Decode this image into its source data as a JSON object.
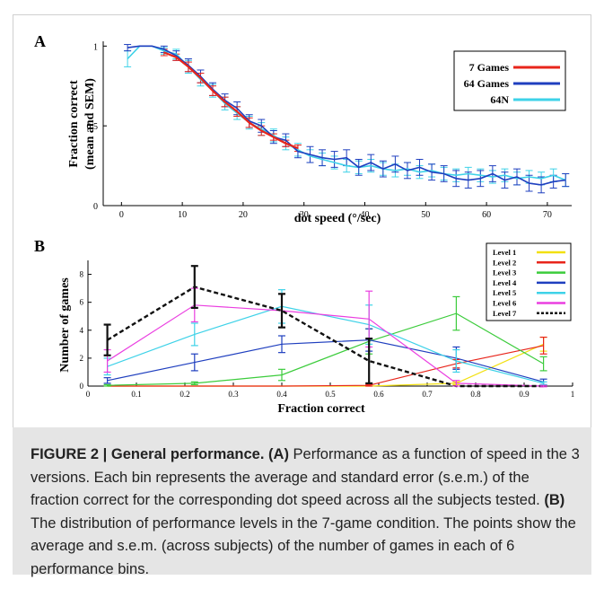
{
  "chart_data": [
    {
      "type": "line",
      "panel_label": "A",
      "xlabel": "dot speed (°/sec)",
      "ylabel_line1": "Fraction correct",
      "ylabel_line2": "(mean and SEM)",
      "xlim": [
        -3,
        74
      ],
      "ylim": [
        0,
        1.03
      ],
      "x_ticks": [
        "0",
        "10",
        "20",
        "30",
        "40",
        "50",
        "60",
        "70"
      ],
      "y_ticks": [
        "0",
        "0.5",
        "1"
      ],
      "legend_position": "top-right",
      "series": [
        {
          "name": "7 Games",
          "color": "#e8251b",
          "x": [
            7,
            9,
            11,
            13,
            15,
            17,
            19,
            21,
            23,
            25,
            27,
            29
          ],
          "y": [
            0.96,
            0.93,
            0.87,
            0.8,
            0.72,
            0.65,
            0.59,
            0.52,
            0.47,
            0.43,
            0.39,
            0.36
          ],
          "err": [
            0.02,
            0.02,
            0.03,
            0.03,
            0.03,
            0.03,
            0.03,
            0.03,
            0.03,
            0.02,
            0.02,
            0.02
          ]
        },
        {
          "name": "64 Games",
          "color": "#1f3fbf",
          "x": [
            1,
            3,
            5,
            7,
            9,
            11,
            13,
            15,
            17,
            19,
            21,
            23,
            25,
            27,
            29,
            31,
            33,
            35,
            37,
            39,
            41,
            43,
            45,
            47,
            49,
            51,
            53,
            55,
            57,
            59,
            61,
            63,
            65,
            67,
            69,
            71,
            73
          ],
          "y": [
            0.99,
            1.0,
            1.0,
            0.98,
            0.94,
            0.88,
            0.81,
            0.73,
            0.66,
            0.61,
            0.53,
            0.5,
            0.43,
            0.41,
            0.34,
            0.32,
            0.3,
            0.29,
            0.3,
            0.24,
            0.27,
            0.23,
            0.26,
            0.22,
            0.24,
            0.21,
            0.2,
            0.17,
            0.16,
            0.17,
            0.2,
            0.16,
            0.18,
            0.14,
            0.13,
            0.15,
            0.16
          ],
          "err": [
            0.02,
            0.0,
            0.0,
            0.02,
            0.03,
            0.04,
            0.04,
            0.04,
            0.04,
            0.04,
            0.04,
            0.04,
            0.04,
            0.04,
            0.04,
            0.05,
            0.05,
            0.05,
            0.05,
            0.05,
            0.05,
            0.05,
            0.05,
            0.05,
            0.05,
            0.05,
            0.05,
            0.05,
            0.05,
            0.05,
            0.05,
            0.05,
            0.05,
            0.05,
            0.05,
            0.04,
            0.04
          ]
        },
        {
          "name": "64N",
          "color": "#3ed2e8",
          "x": [
            1,
            3,
            5,
            7,
            9,
            11,
            13,
            15,
            17,
            19,
            21,
            23,
            25,
            27,
            29,
            31,
            33,
            35,
            37,
            39,
            41,
            43,
            45,
            47,
            49,
            51,
            53,
            55,
            57,
            59,
            61,
            63,
            65,
            67,
            69,
            71,
            73
          ],
          "y": [
            0.92,
            1.0,
            1.0,
            0.97,
            0.95,
            0.87,
            0.79,
            0.72,
            0.64,
            0.58,
            0.52,
            0.48,
            0.44,
            0.39,
            0.35,
            0.31,
            0.29,
            0.27,
            0.25,
            0.24,
            0.25,
            0.23,
            0.22,
            0.23,
            0.21,
            0.22,
            0.2,
            0.19,
            0.2,
            0.19,
            0.18,
            0.19,
            0.17,
            0.18,
            0.17,
            0.19,
            0.16
          ],
          "err": [
            0.05,
            0.0,
            0.0,
            0.02,
            0.03,
            0.04,
            0.04,
            0.04,
            0.04,
            0.04,
            0.04,
            0.04,
            0.04,
            0.04,
            0.04,
            0.04,
            0.04,
            0.04,
            0.04,
            0.04,
            0.04,
            0.04,
            0.04,
            0.04,
            0.04,
            0.04,
            0.04,
            0.04,
            0.04,
            0.04,
            0.04,
            0.04,
            0.04,
            0.04,
            0.04,
            0.04,
            0.04
          ]
        }
      ]
    },
    {
      "type": "line",
      "panel_label": "B",
      "xlabel": "Fraction correct",
      "ylabel": "Number of games",
      "xlim": [
        0,
        1
      ],
      "ylim": [
        0,
        9
      ],
      "x_ticks": [
        "0",
        "0.1",
        "0.2",
        "0.3",
        "0.4",
        "0.5",
        "0.6",
        "0.7",
        "0.8",
        "0.9",
        "1"
      ],
      "y_ticks": [
        "0",
        "2",
        "4",
        "6",
        "8"
      ],
      "legend_position": "top-right",
      "x": [
        0.04,
        0.22,
        0.4,
        0.58,
        0.76,
        0.94
      ],
      "series": [
        {
          "name": "Level 1",
          "color": "#f2e010",
          "dash": false,
          "y": [
            0,
            0,
            0,
            0,
            0.2,
            3.0
          ],
          "err": [
            0,
            0,
            0,
            0,
            0.1,
            0.5
          ]
        },
        {
          "name": "Level 2",
          "color": "#e8251b",
          "dash": false,
          "y": [
            0,
            0,
            0,
            0.05,
            1.6,
            2.9
          ],
          "err": [
            0,
            0,
            0,
            0.05,
            0.3,
            0.6
          ]
        },
        {
          "name": "Level 3",
          "color": "#3ccc3c",
          "dash": false,
          "y": [
            0.05,
            0.2,
            0.8,
            3.2,
            5.2,
            1.6
          ],
          "err": [
            0.05,
            0.1,
            0.4,
            0.9,
            1.2,
            0.5
          ]
        },
        {
          "name": "Level 4",
          "color": "#1f3fbf",
          "dash": false,
          "y": [
            0.4,
            1.7,
            3.0,
            3.3,
            2.0,
            0.3
          ],
          "err": [
            0.2,
            0.6,
            0.6,
            0.8,
            0.8,
            0.2
          ]
        },
        {
          "name": "Level 5",
          "color": "#3ed2e8",
          "dash": false,
          "y": [
            1.4,
            3.7,
            5.7,
            4.4,
            1.8,
            0.2
          ],
          "err": [
            0.6,
            0.8,
            1.2,
            1.4,
            0.8,
            0.1
          ]
        },
        {
          "name": "Level 6",
          "color": "#ea3fe0",
          "dash": false,
          "y": [
            1.8,
            5.8,
            5.4,
            4.8,
            0.2,
            0.0
          ],
          "err": [
            0.8,
            1.2,
            1.2,
            2.0,
            0.2,
            0.05
          ]
        },
        {
          "name": "Level 7",
          "color": "#111111",
          "dash": true,
          "y": [
            3.3,
            7.1,
            5.4,
            1.8,
            0,
            0
          ],
          "err": [
            1.1,
            1.5,
            1.2,
            1.6,
            0,
            0
          ]
        }
      ]
    }
  ],
  "caption": {
    "figure_label": "FIGURE 2 | General performance.",
    "a_label": "(A)",
    "a_text": "Performance as a function of speed in the 3 versions. Each bin represents the average and standard error (s.e.m.) of the fraction correct for the corresponding dot speed across all the subjects tested.",
    "b_label": "(B)",
    "b_text": "The distribution of performance levels in the 7-game condition. The points show the average and s.e.m. (across subjects) of the number of games in each of 6 performance bins."
  }
}
